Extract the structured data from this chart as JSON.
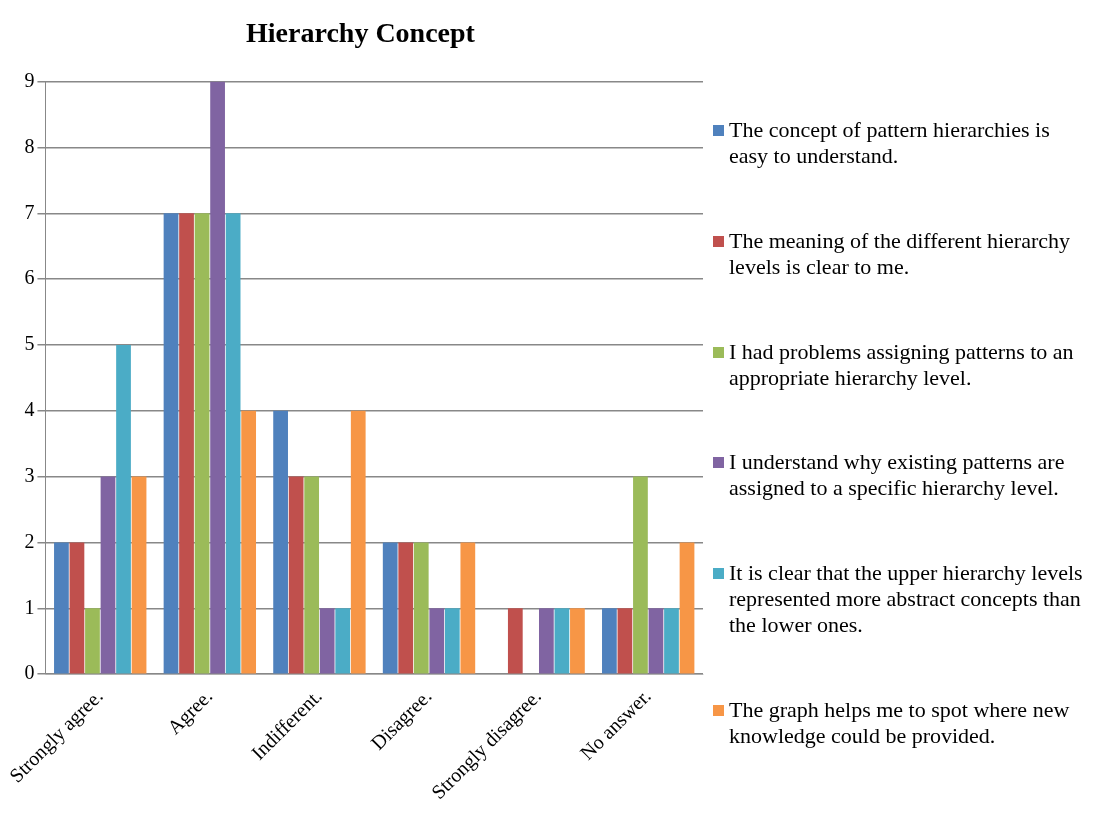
{
  "chart_data": {
    "type": "bar",
    "title": "Hierarchy Concept",
    "categories": [
      "Strongly agree.",
      "Agree.",
      "Indifferent.",
      "Disagree.",
      "Strongly disagree.",
      "No answer."
    ],
    "series": [
      {
        "name": "The concept of pattern hierarchies is easy to understand.",
        "color": "#4f81bd",
        "values": [
          2,
          7,
          4,
          2,
          0,
          1
        ]
      },
      {
        "name": "The meaning of the different hierarchy levels is clear to me.",
        "color": "#c0504d",
        "values": [
          2,
          7,
          3,
          2,
          1,
          1
        ]
      },
      {
        "name": "I had problems assigning patterns to an appropriate hierarchy level.",
        "color": "#9bbb59",
        "values": [
          1,
          7,
          3,
          2,
          0,
          3
        ]
      },
      {
        "name": "I understand why existing patterns are assigned to a specific hierarchy level.",
        "color": "#8064a2",
        "values": [
          3,
          9,
          1,
          1,
          1,
          1
        ]
      },
      {
        "name": "It is clear that the upper hierarchy levels represented more abstract concepts than the lower ones.",
        "color": "#4bacc6",
        "values": [
          5,
          7,
          1,
          1,
          1,
          1
        ]
      },
      {
        "name": "The graph helps me to spot where new knowledge could be provided.",
        "color": "#f79646",
        "values": [
          3,
          4,
          4,
          2,
          1,
          2
        ]
      }
    ],
    "ylim": [
      0,
      9
    ],
    "yticks": [
      0,
      1,
      2,
      3,
      4,
      5,
      6,
      7,
      8,
      9
    ],
    "grid": "y",
    "legend": "right"
  }
}
